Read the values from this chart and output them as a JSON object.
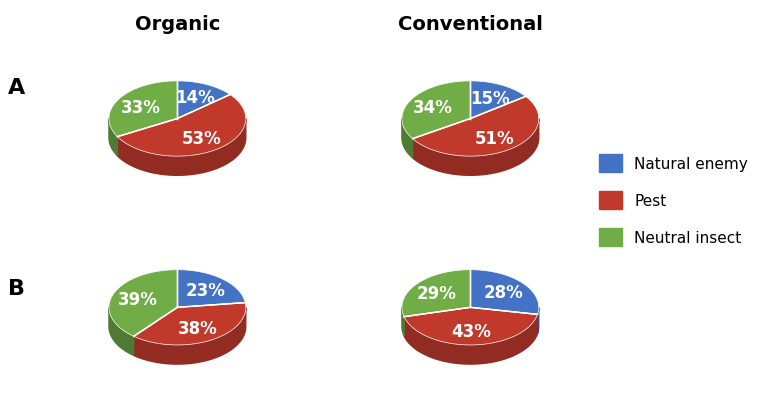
{
  "title_organic": "Organic",
  "title_conventional": "Conventional",
  "label_A": "A",
  "label_B": "B",
  "colors": {
    "natural_enemy": "#4472C4",
    "pest": "#C0392B",
    "neutral_insect": "#70AD47",
    "pest_dark": "#922B21",
    "natural_enemy_dark": "#2E5090",
    "neutral_insect_dark": "#507A33"
  },
  "pies": {
    "A_organic": [
      14,
      53,
      33
    ],
    "A_conventional": [
      15,
      51,
      34
    ],
    "B_organic": [
      23,
      38,
      39
    ],
    "B_conventional": [
      28,
      43,
      29
    ]
  },
  "labels": [
    "Natural enemy",
    "Pest",
    "Neutral insect"
  ],
  "legend_labels": [
    "Natural enemy",
    "Pest",
    "Neutral insect"
  ],
  "text_color": "white",
  "title_fontsize": 14,
  "label_fontsize": 13,
  "pct_fontsize": 12
}
